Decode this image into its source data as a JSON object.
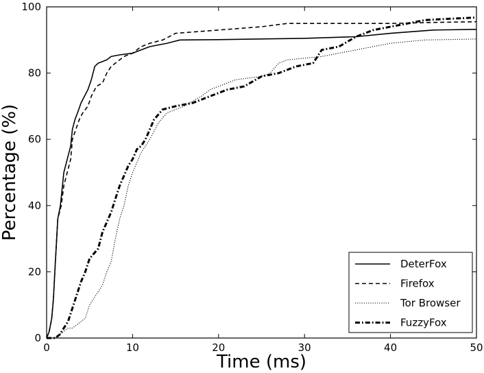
{
  "chart_data": {
    "type": "line",
    "xlabel": "Time (ms)",
    "ylabel": "Percentage (%)",
    "xlim": [
      0,
      50
    ],
    "ylim": [
      0,
      100
    ],
    "xticks": [
      0,
      10,
      20,
      30,
      40,
      50
    ],
    "yticks": [
      0,
      20,
      40,
      60,
      80,
      100
    ],
    "grid": false,
    "legend_position": "bottom-right",
    "series": [
      {
        "name": "DeterFox",
        "style": "solid",
        "points": [
          [
            0,
            0
          ],
          [
            0.3,
            2
          ],
          [
            0.6,
            6
          ],
          [
            0.8,
            12
          ],
          [
            1.0,
            22
          ],
          [
            1.3,
            36
          ],
          [
            1.6,
            40
          ],
          [
            2.0,
            50
          ],
          [
            2.4,
            54
          ],
          [
            2.8,
            58
          ],
          [
            3.0,
            63
          ],
          [
            3.3,
            66
          ],
          [
            3.6,
            68
          ],
          [
            4.0,
            71
          ],
          [
            4.4,
            73
          ],
          [
            4.8,
            75
          ],
          [
            5.2,
            78
          ],
          [
            5.6,
            82
          ],
          [
            6.0,
            83
          ],
          [
            6.5,
            83.5
          ],
          [
            7.0,
            84
          ],
          [
            7.5,
            85
          ],
          [
            8.5,
            85.5
          ],
          [
            10.0,
            86
          ],
          [
            11.0,
            87
          ],
          [
            12.0,
            88
          ],
          [
            14.0,
            89
          ],
          [
            15.5,
            90
          ],
          [
            20,
            90.1
          ],
          [
            30,
            90.5
          ],
          [
            36,
            91
          ],
          [
            40,
            92
          ],
          [
            45,
            93
          ],
          [
            50,
            93.2
          ]
        ]
      },
      {
        "name": "Firefox",
        "style": "dashed",
        "points": [
          [
            0,
            0
          ],
          [
            0.3,
            2
          ],
          [
            0.6,
            6
          ],
          [
            0.8,
            12
          ],
          [
            1.0,
            22
          ],
          [
            1.3,
            36
          ],
          [
            1.7,
            40
          ],
          [
            2.0,
            46
          ],
          [
            2.4,
            50
          ],
          [
            2.8,
            54
          ],
          [
            3.0,
            60
          ],
          [
            3.4,
            63
          ],
          [
            3.8,
            66
          ],
          [
            4.2,
            68
          ],
          [
            4.8,
            70
          ],
          [
            5.2,
            73
          ],
          [
            5.8,
            76
          ],
          [
            6.5,
            77
          ],
          [
            7.0,
            80
          ],
          [
            7.5,
            82
          ],
          [
            8.0,
            83
          ],
          [
            9.0,
            85
          ],
          [
            10.0,
            86
          ],
          [
            11.0,
            88
          ],
          [
            12.0,
            89
          ],
          [
            13.5,
            90
          ],
          [
            15.0,
            92
          ],
          [
            20,
            93
          ],
          [
            25,
            94
          ],
          [
            28,
            95
          ],
          [
            35,
            95
          ],
          [
            40,
            95
          ],
          [
            45,
            95.3
          ],
          [
            50,
            95.5
          ]
        ]
      },
      {
        "name": "Tor Browser",
        "style": "dotted",
        "points": [
          [
            0,
            0
          ],
          [
            1.0,
            0
          ],
          [
            2.0,
            2
          ],
          [
            2.5,
            3
          ],
          [
            3.0,
            3
          ],
          [
            3.5,
            4
          ],
          [
            4.0,
            5
          ],
          [
            4.5,
            6
          ],
          [
            5.0,
            10
          ],
          [
            5.5,
            12
          ],
          [
            6.0,
            14
          ],
          [
            6.5,
            16
          ],
          [
            7.0,
            20
          ],
          [
            7.5,
            23
          ],
          [
            8.0,
            30
          ],
          [
            8.5,
            36
          ],
          [
            9.0,
            40
          ],
          [
            9.5,
            46
          ],
          [
            10.0,
            50
          ],
          [
            10.5,
            53
          ],
          [
            11.0,
            56
          ],
          [
            12.0,
            60
          ],
          [
            13.0,
            65
          ],
          [
            14.0,
            68
          ],
          [
            16.0,
            70
          ],
          [
            18.0,
            73
          ],
          [
            19.0,
            75
          ],
          [
            22.0,
            78
          ],
          [
            25.0,
            79
          ],
          [
            26.0,
            80
          ],
          [
            27.0,
            83
          ],
          [
            28.0,
            84
          ],
          [
            32.0,
            85
          ],
          [
            34.0,
            86
          ],
          [
            36.0,
            87
          ],
          [
            40.0,
            89
          ],
          [
            44.0,
            90
          ],
          [
            50.0,
            90.3
          ]
        ]
      },
      {
        "name": "FuzzyFox",
        "style": "dashdot",
        "points": [
          [
            0,
            0
          ],
          [
            1.0,
            0
          ],
          [
            1.5,
            1
          ],
          [
            2.0,
            3
          ],
          [
            2.5,
            5
          ],
          [
            3.0,
            9
          ],
          [
            3.5,
            13
          ],
          [
            4.0,
            17
          ],
          [
            4.5,
            20
          ],
          [
            5.0,
            24
          ],
          [
            6.0,
            27
          ],
          [
            6.5,
            32
          ],
          [
            7.0,
            35
          ],
          [
            7.5,
            38
          ],
          [
            8.0,
            42
          ],
          [
            8.5,
            46
          ],
          [
            9.0,
            49
          ],
          [
            9.5,
            52
          ],
          [
            10.0,
            54
          ],
          [
            10.5,
            57
          ],
          [
            11.0,
            58
          ],
          [
            11.5,
            60
          ],
          [
            12.0,
            63
          ],
          [
            12.5,
            66
          ],
          [
            13.5,
            69
          ],
          [
            15.0,
            70
          ],
          [
            17.0,
            71
          ],
          [
            19.0,
            73
          ],
          [
            21.0,
            75
          ],
          [
            23.0,
            76
          ],
          [
            25.0,
            79
          ],
          [
            27.0,
            80
          ],
          [
            28.0,
            81
          ],
          [
            29.0,
            82
          ],
          [
            31.0,
            83
          ],
          [
            32.0,
            87
          ],
          [
            34.0,
            88
          ],
          [
            36.0,
            91
          ],
          [
            38.0,
            93
          ],
          [
            40.0,
            94
          ],
          [
            42.0,
            95
          ],
          [
            44.0,
            96
          ],
          [
            46.0,
            96.3
          ],
          [
            50.0,
            96.8
          ]
        ]
      }
    ]
  }
}
